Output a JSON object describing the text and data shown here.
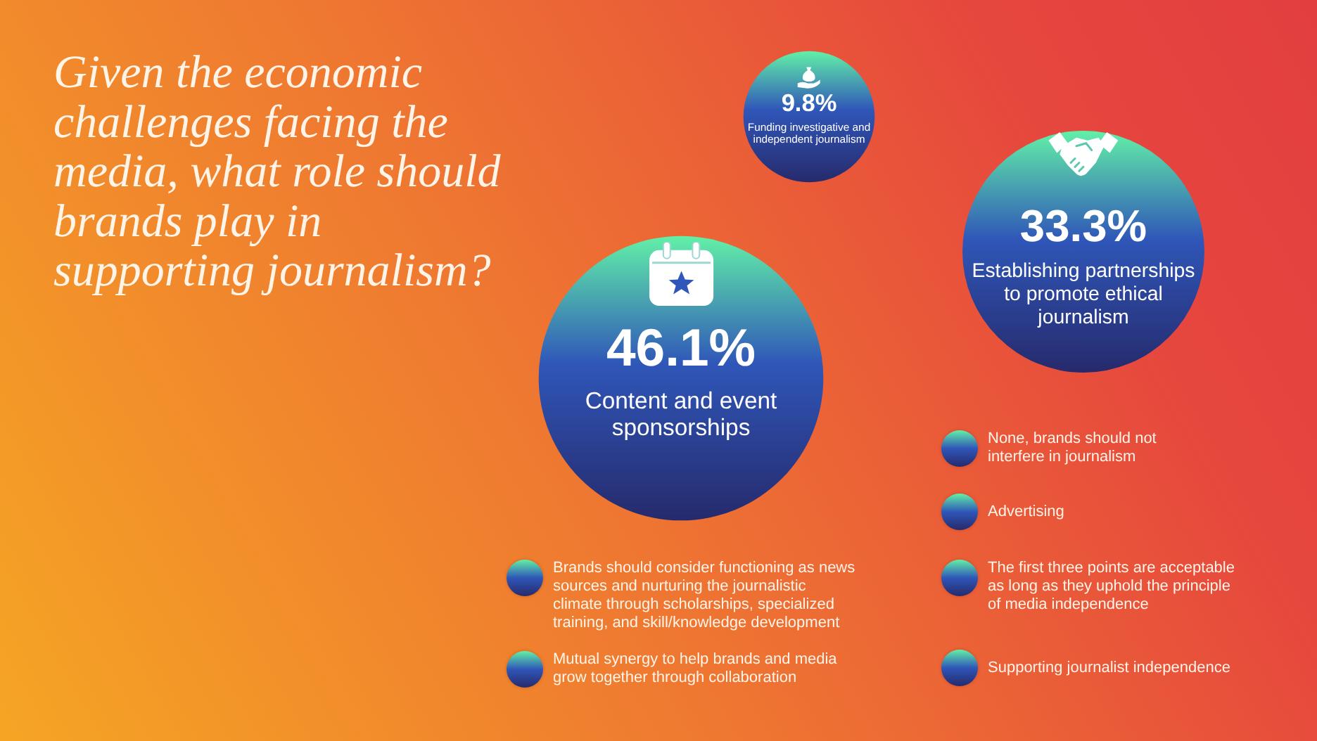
{
  "chart_data": {
    "type": "other",
    "title": "Given the economic challenges facing the media, what role should brands play in supporting journalism?",
    "categories": [
      "Content and event sponsorships",
      "Establishing partnerships to promote ethical journalism",
      "Funding investigative and independent journalism"
    ],
    "values": [
      46.1,
      33.3,
      9.8
    ],
    "value_labels": [
      "46.1%",
      "33.3%",
      "9.8%"
    ],
    "color": "#2f56b8",
    "annotations": [
      "Brands should consider functioning as news sources and nurturing the journalistic climate through scholarships, specialized training, and skill/knowledge development",
      "Mutual synergy to help brands and media grow together through collaboration",
      "None, brands should not interfere in journalism",
      "Advertising",
      "The first three points are acceptable as long as they uphold the principle of media independence",
      "Supporting journalist independence"
    ]
  }
}
